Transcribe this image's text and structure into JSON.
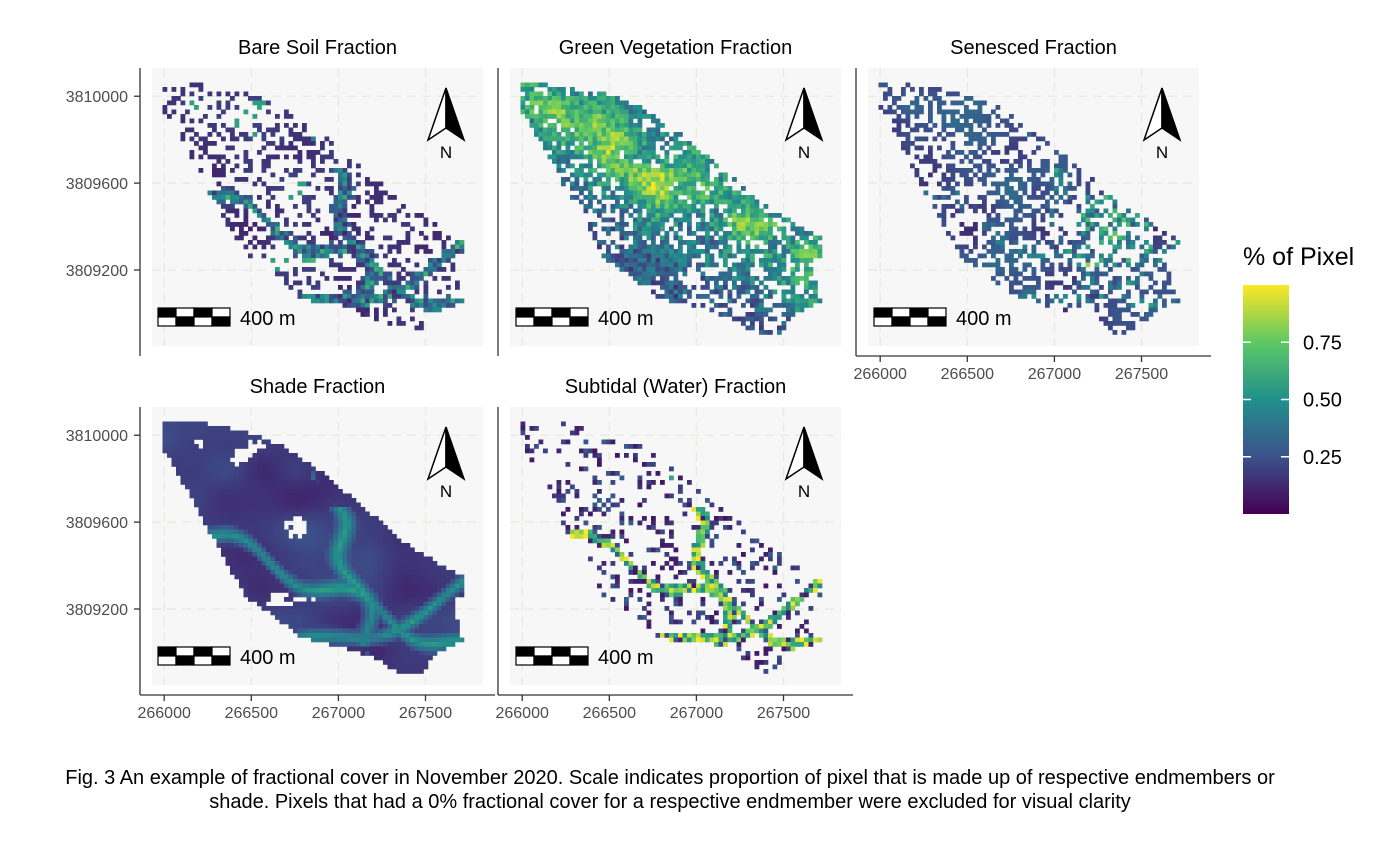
{
  "figure": {
    "caption": "Fig. 3 An example of fractional cover in November 2020. Scale indicates proportion of pixel that is made up of respective endmembers or shade. Pixels that had a 0% fractional cover for a respective endmember were excluded for visual clarity",
    "legend_title": "% of Pixel",
    "colorbar_ticks": [
      "0.25",
      "0.50",
      "0.75"
    ],
    "colorbar_tick_values": [
      0.25,
      0.5,
      0.75
    ],
    "colormap": [
      "#440154",
      "#3b528b",
      "#21908c",
      "#5dc863",
      "#fde725"
    ],
    "north_label": "N",
    "scalebar_label": "400 m"
  },
  "chart_data": [
    {
      "type": "heatmap",
      "title": "Bare Soil Fraction",
      "endmember": "bare",
      "xlim": [
        265930,
        267830
      ],
      "ylim": [
        3808850,
        3810130
      ],
      "x_ticks": [
        "266000",
        "266500",
        "267000",
        "267500"
      ],
      "x_tick_values": [
        266000,
        266500,
        267000,
        267500
      ],
      "show_x_ticks": false,
      "y_ticks": [
        "3810000",
        "3809600",
        "3809200"
      ],
      "y_tick_values": [
        3810000,
        3809600,
        3809200
      ],
      "show_y_ticks": true
    },
    {
      "type": "heatmap",
      "title": "Green Vegetation Fraction",
      "endmember": "green",
      "xlim": [
        265930,
        267830
      ],
      "ylim": [
        3808850,
        3810130
      ],
      "x_ticks": [
        "266000",
        "266500",
        "267000",
        "267500"
      ],
      "x_tick_values": [
        266000,
        266500,
        267000,
        267500
      ],
      "show_x_ticks": false,
      "y_ticks": [
        "3810000",
        "3809600",
        "3809200"
      ],
      "y_tick_values": [
        3810000,
        3809600,
        3809200
      ],
      "show_y_ticks": false
    },
    {
      "type": "heatmap",
      "title": "Senesced Fraction",
      "endmember": "senesced",
      "xlim": [
        265930,
        267830
      ],
      "ylim": [
        3808850,
        3810130
      ],
      "x_ticks": [
        "266000",
        "266500",
        "267000",
        "267500"
      ],
      "x_tick_values": [
        266000,
        266500,
        267000,
        267500
      ],
      "show_x_ticks": true,
      "y_ticks": [
        "3810000",
        "3809600",
        "3809200"
      ],
      "y_tick_values": [
        3810000,
        3809600,
        3809200
      ],
      "show_y_ticks": false
    },
    {
      "type": "heatmap",
      "title": "Shade Fraction",
      "endmember": "shade",
      "xlim": [
        265930,
        267830
      ],
      "ylim": [
        3808850,
        3810130
      ],
      "x_ticks": [
        "266000",
        "266500",
        "267000",
        "267500"
      ],
      "x_tick_values": [
        266000,
        266500,
        267000,
        267500
      ],
      "show_x_ticks": true,
      "y_ticks": [
        "3810000",
        "3809600",
        "3809200"
      ],
      "y_tick_values": [
        3810000,
        3809600,
        3809200
      ],
      "show_y_ticks": true
    },
    {
      "type": "heatmap",
      "title": "Subtidal (Water) Fraction",
      "endmember": "water",
      "xlim": [
        265930,
        267830
      ],
      "ylim": [
        3808850,
        3810130
      ],
      "x_ticks": [
        "266000",
        "266500",
        "267000",
        "267500"
      ],
      "x_tick_values": [
        266000,
        266500,
        267000,
        267500
      ],
      "show_x_ticks": true,
      "y_ticks": [
        "3810000",
        "3809600",
        "3809200"
      ],
      "y_tick_values": [
        3810000,
        3809600,
        3809200
      ],
      "show_y_ticks": false
    }
  ]
}
